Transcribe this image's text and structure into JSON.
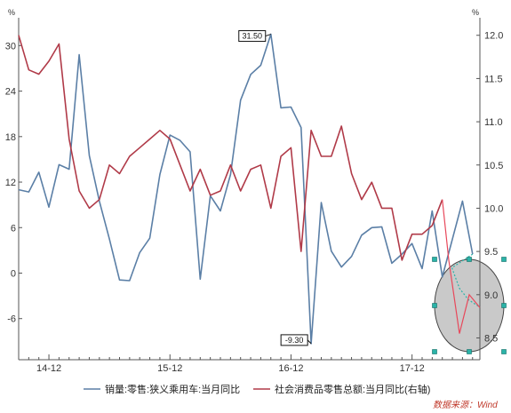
{
  "chart_data": {
    "type": "line",
    "x_tick_labels": [
      "14-12",
      "15-12",
      "16-12",
      "17-12"
    ],
    "x_tick_index": [
      3,
      15,
      27,
      39
    ],
    "left_axis": {
      "unit": "%",
      "ylim": [
        -10.6,
        32.5
      ],
      "ticks": [
        "-6",
        "0",
        "6",
        "12",
        "18",
        "24",
        "30"
      ],
      "tick_values": [
        -6,
        0,
        6,
        12,
        18,
        24,
        30
      ]
    },
    "right_axis": {
      "unit": "%",
      "ylim": [
        8.32,
        12.1
      ],
      "ticks": [
        "8.5",
        "9.0",
        "9.5",
        "10.0",
        "10.5",
        "11.0",
        "11.5",
        "12.0"
      ],
      "tick_values": [
        8.5,
        9.0,
        9.5,
        10.0,
        10.5,
        11.0,
        11.5,
        12.0
      ]
    },
    "series": [
      {
        "name": "销量:零售:狭义乘用车:当月同比",
        "axis": "left",
        "color": "#5b7fa6",
        "values": [
          11.0,
          10.7,
          13.3,
          8.7,
          14.3,
          13.7,
          28.8,
          15.5,
          9.5,
          4.5,
          -0.9,
          -1.0,
          2.7,
          4.6,
          13.0,
          18.2,
          17.5,
          16.0,
          -0.8,
          10.2,
          8.2,
          13.0,
          22.8,
          26.2,
          27.4,
          31.5,
          21.8,
          21.9,
          19.2,
          -9.3,
          9.3,
          2.9,
          0.8,
          2.2,
          5.0,
          6.0,
          6.1,
          1.3,
          2.5,
          3.9,
          0.6,
          8.2,
          -0.5,
          4.5,
          9.5,
          2.5
        ],
        "extra_values": [
          0.7,
          -2.0,
          -3.5,
          -4.5
        ]
      },
      {
        "name": "社会消费品零售总额:当月同比(右轴)",
        "axis": "right",
        "color": "#b03a48",
        "values": [
          12.0,
          11.6,
          11.55,
          11.7,
          11.9,
          10.8,
          10.2,
          10.0,
          10.1,
          10.5,
          10.4,
          10.6,
          10.7,
          10.8,
          10.9,
          10.8,
          10.5,
          10.2,
          10.45,
          10.15,
          10.2,
          10.5,
          10.2,
          10.45,
          10.5,
          10.0,
          10.6,
          10.7,
          9.5,
          10.9,
          10.6,
          10.6,
          10.95,
          10.4,
          10.1,
          10.3,
          10.0,
          10.0,
          9.4,
          9.7,
          9.7,
          9.8,
          10.1
        ],
        "extra_values": [
          9.4,
          8.55,
          9.0,
          8.85
        ]
      }
    ],
    "annotations": [
      {
        "text": "31.50",
        "series": 0,
        "index": 25
      },
      {
        "text": "-9.30",
        "series": 0,
        "index": 29
      }
    ],
    "legend": {
      "placement": "bottom"
    },
    "grid": false,
    "source": "数据来源：Wind",
    "colors": {
      "series1": "#5b7fa6",
      "series2": "#b03a48",
      "highlight_fill": "#c9c9c9",
      "handle": "#2bb3a8"
    }
  }
}
